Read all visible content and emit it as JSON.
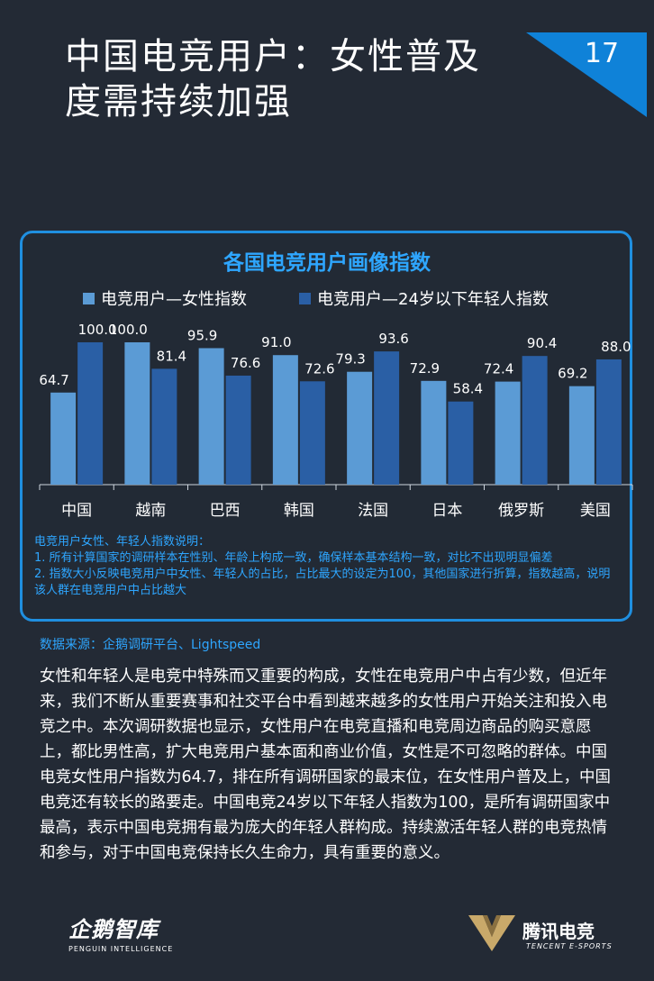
{
  "header": {
    "title": "中国电竞用户：女性普及度需持续加强",
    "page_number": "17"
  },
  "colors": {
    "background": "#232a35",
    "accent": "#1f8fe0",
    "series1": "#5b9bd5",
    "series2": "#2a5fa5"
  },
  "chart_data": {
    "type": "bar",
    "title": "各国电竞用户画像指数",
    "categories": [
      "中国",
      "越南",
      "巴西",
      "韩国",
      "法国",
      "日本",
      "俄罗斯",
      "美国"
    ],
    "series": [
      {
        "name": "电竞用户—女性指数",
        "values": [
          64.7,
          100.0,
          95.9,
          91.0,
          79.3,
          72.9,
          72.4,
          69.2
        ]
      },
      {
        "name": "电竞用户—24岁以下年轻人指数",
        "values": [
          100.0,
          81.4,
          76.6,
          72.6,
          93.6,
          58.4,
          90.4,
          88.0
        ]
      }
    ],
    "ylim": [
      0,
      100
    ],
    "grid": false,
    "legend": "top"
  },
  "notes": {
    "heading": "电竞用户女性、年轻人指数说明：",
    "line1": "1. 所有计算国家的调研样本在性别、年龄上构成一致，确保样本基本结构一致，对比不出现明显偏差",
    "line2": "2. 指数大小反映电竞用户中女性、年轻人的占比，占比最大的设定为100，其他国家进行折算，指数越高，说明该人群在电竞用户中占比越大"
  },
  "source": "数据来源：企鹅调研平台、Lightspeed",
  "body_text": "女性和年轻人是电竞中特殊而又重要的构成，女性在电竞用户中占有少数，但近年来，我们不断从重要赛事和社交平台中看到越来越多的女性用户开始关注和投入电竞之中。本次调研数据也显示，女性用户在电竞直播和电竞周边商品的购买意愿上，都比男性高，扩大电竞用户基本面和商业价值，女性是不可忽略的群体。中国电竞女性用户指数为64.7，排在所有调研国家的最末位，在女性用户普及上，中国电竞还有较长的路要走。中国电竞24岁以下年轻人指数为100，是所有调研国家中最高，表示中国电竞拥有最为庞大的年轻人群构成。持续激活年轻人群的电竞热情和参与，对于中国电竞保持长久生命力，具有重要的意义。",
  "footer": {
    "left_logo_name": "企鹅智库",
    "left_logo_sub": "PENGUIN INTELLIGENCE",
    "right_logo_name": "腾讯电竞",
    "right_logo_sub": "TENCENT E-SPORTS"
  }
}
